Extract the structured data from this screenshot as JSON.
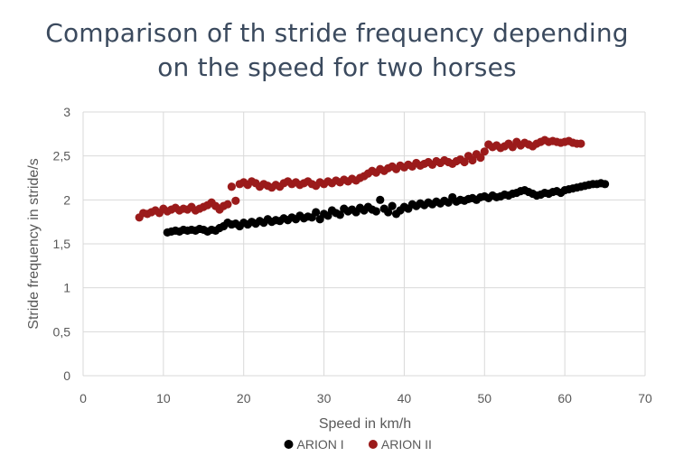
{
  "chart_data": {
    "type": "scatter",
    "title_lines": [
      "Comparison of th stride frequency depending",
      "on the speed for two horses"
    ],
    "xlabel": "Speed in km/h",
    "ylabel": "Stride frequency in stride/s",
    "xlim": [
      0,
      70
    ],
    "ylim": [
      0,
      3
    ],
    "x_ticks": [
      0,
      10,
      20,
      30,
      40,
      50,
      60,
      70
    ],
    "y_ticks": [
      0,
      0.5,
      1,
      1.5,
      2,
      2.5,
      3
    ],
    "y_tick_labels": [
      "0",
      "0,5",
      "1",
      "1,5",
      "2",
      "2,5",
      "3"
    ],
    "grid": "horizontal",
    "legend_position": "bottom",
    "series": [
      {
        "name": "ARION I",
        "color": "#000000",
        "points": [
          [
            10.5,
            1.63
          ],
          [
            11,
            1.64
          ],
          [
            11.5,
            1.65
          ],
          [
            12,
            1.64
          ],
          [
            12.5,
            1.66
          ],
          [
            13,
            1.65
          ],
          [
            13.5,
            1.66
          ],
          [
            14,
            1.65
          ],
          [
            14.5,
            1.67
          ],
          [
            15,
            1.66
          ],
          [
            15.5,
            1.64
          ],
          [
            16,
            1.66
          ],
          [
            16.5,
            1.65
          ],
          [
            17,
            1.68
          ],
          [
            17.5,
            1.7
          ],
          [
            18,
            1.74
          ],
          [
            18.5,
            1.72
          ],
          [
            19,
            1.73
          ],
          [
            19.5,
            1.7
          ],
          [
            20,
            1.74
          ],
          [
            20.5,
            1.72
          ],
          [
            21,
            1.75
          ],
          [
            21.5,
            1.73
          ],
          [
            22,
            1.76
          ],
          [
            22.5,
            1.74
          ],
          [
            23,
            1.78
          ],
          [
            23.5,
            1.75
          ],
          [
            24,
            1.77
          ],
          [
            24.5,
            1.76
          ],
          [
            25,
            1.79
          ],
          [
            25.5,
            1.77
          ],
          [
            26,
            1.8
          ],
          [
            26.5,
            1.78
          ],
          [
            27,
            1.82
          ],
          [
            27.5,
            1.79
          ],
          [
            28,
            1.81
          ],
          [
            28.5,
            1.8
          ],
          [
            29,
            1.86
          ],
          [
            29.5,
            1.78
          ],
          [
            30,
            1.84
          ],
          [
            30.5,
            1.82
          ],
          [
            31,
            1.88
          ],
          [
            31.5,
            1.85
          ],
          [
            32,
            1.83
          ],
          [
            32.5,
            1.9
          ],
          [
            33,
            1.87
          ],
          [
            33.5,
            1.89
          ],
          [
            34,
            1.86
          ],
          [
            34.5,
            1.91
          ],
          [
            35,
            1.88
          ],
          [
            35.5,
            1.92
          ],
          [
            36,
            1.89
          ],
          [
            36.5,
            1.87
          ],
          [
            37,
            2.0
          ],
          [
            37.5,
            1.9
          ],
          [
            38,
            1.86
          ],
          [
            38.5,
            1.93
          ],
          [
            39,
            1.84
          ],
          [
            39.5,
            1.88
          ],
          [
            40,
            1.92
          ],
          [
            40.5,
            1.9
          ],
          [
            41,
            1.95
          ],
          [
            41.5,
            1.93
          ],
          [
            42,
            1.96
          ],
          [
            42.5,
            1.94
          ],
          [
            43,
            1.97
          ],
          [
            43.5,
            1.95
          ],
          [
            44,
            1.98
          ],
          [
            44.5,
            1.96
          ],
          [
            45,
            1.99
          ],
          [
            45.5,
            1.97
          ],
          [
            46,
            2.03
          ],
          [
            46.5,
            1.98
          ],
          [
            47,
            2.0
          ],
          [
            47.5,
            1.99
          ],
          [
            48,
            2.01
          ],
          [
            48.5,
            2.02
          ],
          [
            49,
            2.0
          ],
          [
            49.5,
            2.03
          ],
          [
            50,
            2.04
          ],
          [
            50.5,
            2.02
          ],
          [
            51,
            2.05
          ],
          [
            51.5,
            2.03
          ],
          [
            52,
            2.04
          ],
          [
            52.5,
            2.06
          ],
          [
            53,
            2.05
          ],
          [
            53.5,
            2.07
          ],
          [
            54,
            2.08
          ],
          [
            54.5,
            2.1
          ],
          [
            55,
            2.11
          ],
          [
            55.5,
            2.09
          ],
          [
            56,
            2.07
          ],
          [
            56.5,
            2.05
          ],
          [
            57,
            2.06
          ],
          [
            57.5,
            2.08
          ],
          [
            58,
            2.07
          ],
          [
            58.5,
            2.09
          ],
          [
            59,
            2.1
          ],
          [
            59.5,
            2.08
          ],
          [
            60,
            2.11
          ],
          [
            60.5,
            2.12
          ],
          [
            61,
            2.13
          ],
          [
            61.5,
            2.14
          ],
          [
            62,
            2.15
          ],
          [
            62.5,
            2.16
          ],
          [
            63,
            2.17
          ],
          [
            63.5,
            2.18
          ],
          [
            64,
            2.18
          ],
          [
            64.5,
            2.19
          ],
          [
            65,
            2.18
          ]
        ]
      },
      {
        "name": "ARION II",
        "color": "#9b1b1b",
        "points": [
          [
            7,
            1.8
          ],
          [
            7.5,
            1.85
          ],
          [
            8,
            1.84
          ],
          [
            8.5,
            1.86
          ],
          [
            9,
            1.88
          ],
          [
            9.5,
            1.85
          ],
          [
            10,
            1.9
          ],
          [
            10.5,
            1.87
          ],
          [
            11,
            1.89
          ],
          [
            11.5,
            1.91
          ],
          [
            12,
            1.88
          ],
          [
            12.5,
            1.9
          ],
          [
            13,
            1.89
          ],
          [
            13.5,
            1.92
          ],
          [
            14,
            1.88
          ],
          [
            14.5,
            1.9
          ],
          [
            15,
            1.92
          ],
          [
            15.5,
            1.94
          ],
          [
            16,
            1.97
          ],
          [
            16.5,
            1.93
          ],
          [
            17,
            1.89
          ],
          [
            17.5,
            1.93
          ],
          [
            18,
            1.95
          ],
          [
            18.5,
            2.15
          ],
          [
            19,
            1.99
          ],
          [
            19.5,
            2.18
          ],
          [
            20,
            2.2
          ],
          [
            20.5,
            2.17
          ],
          [
            21,
            2.21
          ],
          [
            21.5,
            2.19
          ],
          [
            22,
            2.15
          ],
          [
            22.5,
            2.18
          ],
          [
            23,
            2.16
          ],
          [
            23.5,
            2.14
          ],
          [
            24,
            2.17
          ],
          [
            24.5,
            2.15
          ],
          [
            25,
            2.19
          ],
          [
            25.5,
            2.21
          ],
          [
            26,
            2.18
          ],
          [
            26.5,
            2.2
          ],
          [
            27,
            2.17
          ],
          [
            27.5,
            2.19
          ],
          [
            28,
            2.21
          ],
          [
            28.5,
            2.18
          ],
          [
            29,
            2.16
          ],
          [
            29.5,
            2.2
          ],
          [
            30,
            2.18
          ],
          [
            30.5,
            2.21
          ],
          [
            31,
            2.19
          ],
          [
            31.5,
            2.22
          ],
          [
            32,
            2.2
          ],
          [
            32.5,
            2.23
          ],
          [
            33,
            2.21
          ],
          [
            33.5,
            2.24
          ],
          [
            34,
            2.22
          ],
          [
            34.5,
            2.25
          ],
          [
            35,
            2.27
          ],
          [
            35.5,
            2.3
          ],
          [
            36,
            2.33
          ],
          [
            36.5,
            2.31
          ],
          [
            37,
            2.35
          ],
          [
            37.5,
            2.33
          ],
          [
            38,
            2.36
          ],
          [
            38.5,
            2.38
          ],
          [
            39,
            2.35
          ],
          [
            39.5,
            2.39
          ],
          [
            40,
            2.37
          ],
          [
            40.5,
            2.4
          ],
          [
            41,
            2.38
          ],
          [
            41.5,
            2.42
          ],
          [
            42,
            2.39
          ],
          [
            42.5,
            2.41
          ],
          [
            43,
            2.43
          ],
          [
            43.5,
            2.4
          ],
          [
            44,
            2.44
          ],
          [
            44.5,
            2.42
          ],
          [
            45,
            2.45
          ],
          [
            45.5,
            2.43
          ],
          [
            46,
            2.41
          ],
          [
            46.5,
            2.44
          ],
          [
            47,
            2.46
          ],
          [
            47.5,
            2.43
          ],
          [
            48,
            2.5
          ],
          [
            48.5,
            2.45
          ],
          [
            49,
            2.52
          ],
          [
            49.5,
            2.48
          ],
          [
            50,
            2.55
          ],
          [
            50.5,
            2.63
          ],
          [
            51,
            2.6
          ],
          [
            51.5,
            2.62
          ],
          [
            52,
            2.59
          ],
          [
            52.5,
            2.61
          ],
          [
            53,
            2.64
          ],
          [
            53.5,
            2.6
          ],
          [
            54,
            2.66
          ],
          [
            54.5,
            2.62
          ],
          [
            55,
            2.65
          ],
          [
            55.5,
            2.63
          ],
          [
            56,
            2.61
          ],
          [
            56.5,
            2.64
          ],
          [
            57,
            2.66
          ],
          [
            57.5,
            2.68
          ],
          [
            58,
            2.66
          ],
          [
            58.5,
            2.67
          ],
          [
            59,
            2.66
          ],
          [
            59.5,
            2.65
          ],
          [
            60,
            2.66
          ],
          [
            60.5,
            2.67
          ],
          [
            61,
            2.65
          ],
          [
            61.5,
            2.64
          ],
          [
            62,
            2.64
          ]
        ]
      }
    ]
  }
}
